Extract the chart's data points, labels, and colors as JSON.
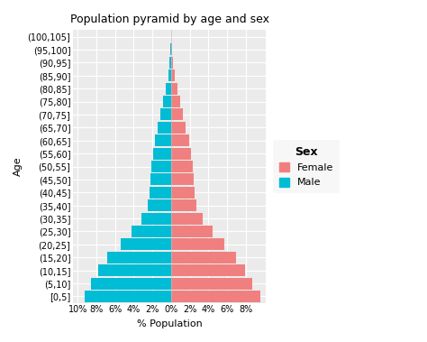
{
  "title": "Population pyramid by age and sex",
  "xlabel": "% Population",
  "ylabel": "Age",
  "age_groups": [
    "[0,5]",
    "(5,10]",
    "(10,15]",
    "(15,20]",
    "(20,25]",
    "(25,30]",
    "(30,35]",
    "(35,40]",
    "(40,45]",
    "(45,50]",
    "(50,55]",
    "(55,60]",
    "(60,65]",
    "(65,70]",
    "(70,75]",
    "(75,80]",
    "(80,85]",
    "(85,90]",
    "(90,95]",
    "(95,100]",
    "(100,105]"
  ],
  "male": [
    9.3,
    8.6,
    7.8,
    6.8,
    5.4,
    4.2,
    3.2,
    2.5,
    2.3,
    2.2,
    2.1,
    1.9,
    1.7,
    1.4,
    1.1,
    0.85,
    0.55,
    0.32,
    0.15,
    0.06,
    0.02
  ],
  "female": [
    9.6,
    8.7,
    7.9,
    7.0,
    5.7,
    4.5,
    3.4,
    2.7,
    2.5,
    2.4,
    2.3,
    2.1,
    1.9,
    1.6,
    1.3,
    1.0,
    0.65,
    0.38,
    0.18,
    0.07,
    0.02
  ],
  "male_color": "#00BCD4",
  "female_color": "#F08080",
  "panel_bg": "#EBEBEB",
  "fig_bg": "#FFFFFF",
  "grid_color": "#FFFFFF",
  "legend_title": "Sex",
  "xticks": [
    -10,
    -8,
    -6,
    -4,
    -2,
    0,
    2,
    4,
    6,
    8
  ],
  "xtick_labels": [
    "10%",
    "8%",
    "6%",
    "4%",
    "2%",
    "0%",
    "2%",
    "4%",
    "6%",
    "8%"
  ],
  "xlim": [
    -10.5,
    10.2
  ],
  "bar_height": 0.9,
  "title_fontsize": 9,
  "axis_label_fontsize": 8,
  "tick_fontsize": 7,
  "legend_fontsize": 8,
  "legend_title_fontsize": 9
}
